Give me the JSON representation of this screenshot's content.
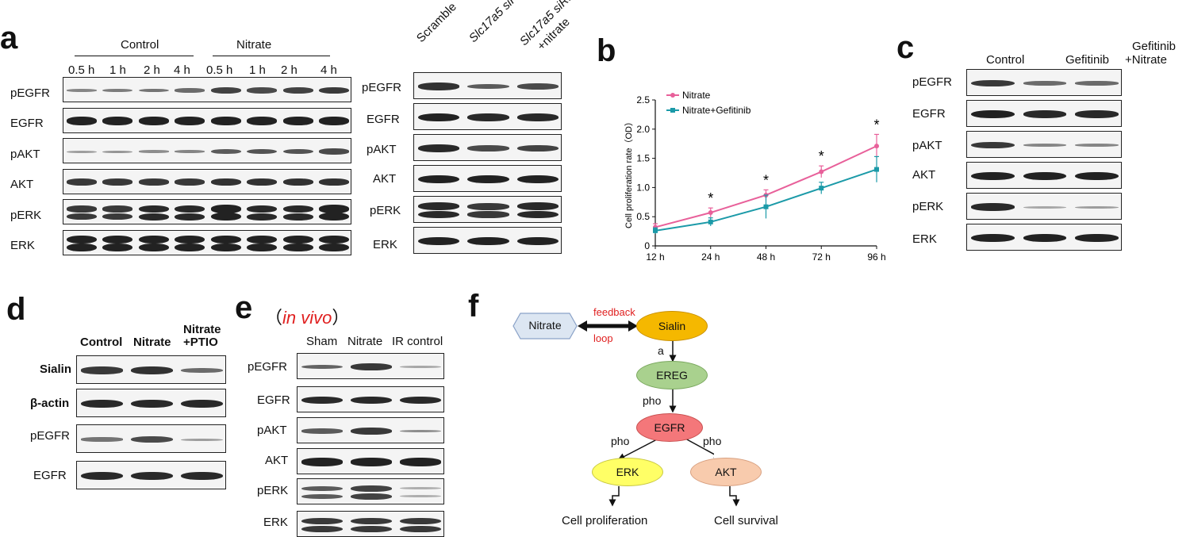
{
  "panels": {
    "a": {
      "letter": "a",
      "groups": [
        "Control",
        "Nitrate"
      ],
      "times": [
        "0.5 h",
        "1 h",
        "2 h",
        "4 h",
        "0.5 h",
        "1 h",
        "2 h",
        "4 h"
      ],
      "rows": [
        "pEGFR",
        "EGFR",
        "pAKT",
        "AKT",
        "pERK",
        "ERK"
      ],
      "right_cols": [
        "Scramble",
        "Slc17a5 siRNA",
        "Slc17a5 siRNA",
        "+nitrate"
      ],
      "right_rows": [
        "pEGFR",
        "EGFR",
        "pAKT",
        "AKT",
        "pERK",
        "ERK"
      ]
    },
    "b": {
      "letter": "b"
    },
    "c": {
      "letter": "c",
      "cols": [
        "Control",
        "Gefitinib",
        "Gefitinib",
        "+Nitrate"
      ],
      "rows": [
        "pEGFR",
        "EGFR",
        "pAKT",
        "AKT",
        "pERK",
        "ERK"
      ]
    },
    "d": {
      "letter": "d",
      "cols": [
        "Control",
        "Nitrate",
        "Nitrate",
        "+PTIO"
      ],
      "rows": [
        "Sialin",
        "β-actin",
        "pEGFR",
        "EGFR"
      ]
    },
    "e": {
      "letter": "e",
      "paren_open": "（",
      "title": "in vivo",
      "paren_close": "）",
      "cols": [
        "Sham",
        "Nitrate",
        "IR control"
      ],
      "rows": [
        "pEGFR",
        "EGFR",
        "pAKT",
        "AKT",
        "pERK",
        "ERK"
      ]
    },
    "f": {
      "letter": "f",
      "nodes": {
        "nitrate": "Nitrate",
        "sialin": "Sialin",
        "ereg": "EREG",
        "egfr": "EGFR",
        "erk": "ERK",
        "akt": "AKT"
      },
      "edge_labels": {
        "feedback": "feedback",
        "loop": "loop",
        "a": "a",
        "pho1": "pho",
        "pho2": "pho",
        "pho3": "pho"
      },
      "outcomes": {
        "prolif": "Cell proliferation",
        "survival": "Cell survival"
      },
      "colors": {
        "nitrate": "#dce6f2",
        "sialin": "#f5b800",
        "ereg": "#a9d18e",
        "egfr": "#f4777a",
        "erk": "#ffff66",
        "akt": "#f8cbad",
        "feedback": "#e02020"
      }
    }
  },
  "chart_data": {
    "type": "line",
    "categories": [
      "12 h",
      "24 h",
      "48 h",
      "72 h",
      "96 h"
    ],
    "ylabel": "Cell proliferation rate（OD）",
    "ylim": [
      0,
      2.5
    ],
    "yticks": [
      "0",
      "0.5",
      "1.0",
      "1.5",
      "2.0",
      "2.5"
    ],
    "legend_position": "top-left",
    "series": [
      {
        "name": "Nitrate",
        "color": "#e8609a",
        "values": [
          0.32,
          0.57,
          0.87,
          1.27,
          1.71
        ],
        "err": [
          0.06,
          0.08,
          0.09,
          0.1,
          0.2
        ]
      },
      {
        "name": "Nitrate+Gefitinib",
        "color": "#1b9aa8",
        "values": [
          0.26,
          0.41,
          0.67,
          0.99,
          1.31
        ],
        "err": [
          0.05,
          0.07,
          0.2,
          0.1,
          0.22
        ]
      }
    ],
    "annotations": [
      "*",
      "*",
      "*",
      "*"
    ]
  }
}
